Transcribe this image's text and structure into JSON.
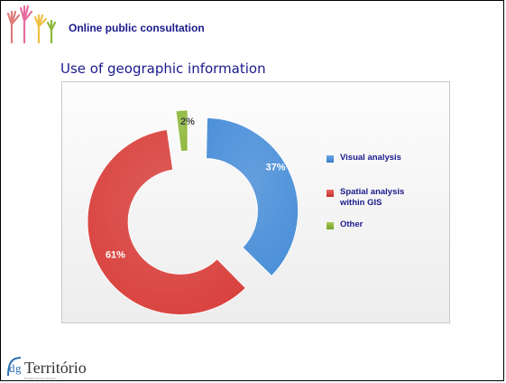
{
  "header": {
    "title": "Online public consultation"
  },
  "slide": {
    "subtitle": "Use of geographic information"
  },
  "footer": {
    "logo_prefix": "dg",
    "logo_main": "Território",
    "logo_sub": "Direção-Geral do Território"
  },
  "colors": {
    "title": "#1a1a8c",
    "visual": "#4a8fd9",
    "spatial": "#d9413d",
    "other": "#8db83a"
  },
  "chart_data": {
    "type": "pie",
    "style": "exploded-doughnut",
    "categories": [
      "Visual analysis",
      "Spatial analysis within GIS",
      "Other"
    ],
    "values": [
      37,
      61,
      2
    ],
    "labels": [
      "37%",
      "61%",
      "2%"
    ],
    "legend": "right"
  }
}
